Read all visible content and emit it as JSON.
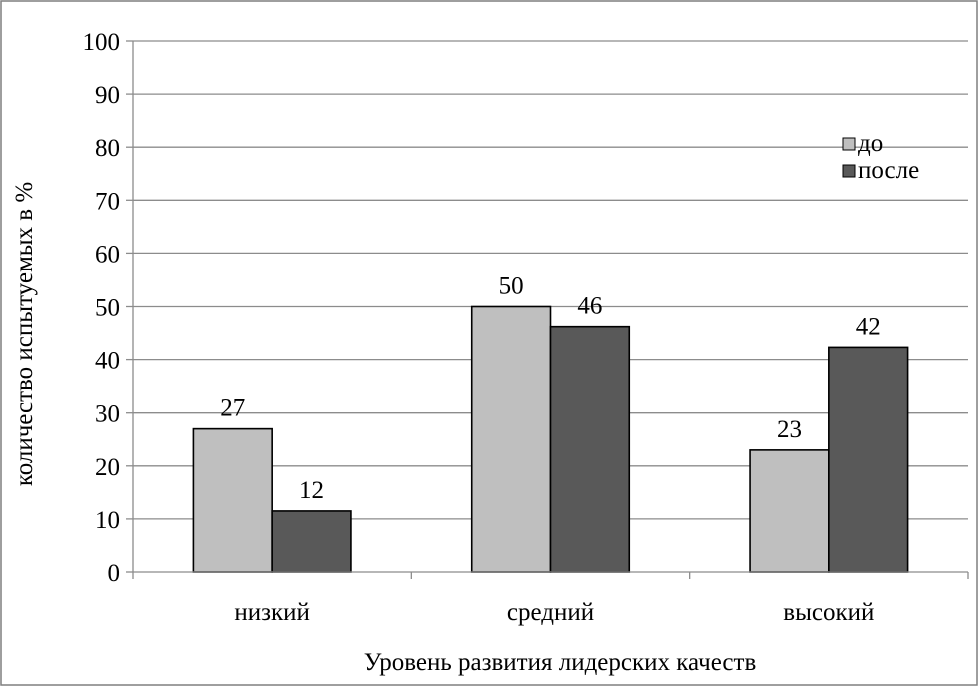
{
  "chart_data": {
    "type": "bar",
    "categories": [
      "низкий",
      "средний",
      "высокий"
    ],
    "series": [
      {
        "name": "до",
        "values": [
          27,
          50,
          23
        ],
        "labels": [
          "27",
          "50",
          "23"
        ],
        "color": "#bfbfbf"
      },
      {
        "name": "после",
        "values": [
          11.5,
          46.2,
          42.3
        ],
        "labels": [
          "12",
          "46",
          "42"
        ],
        "color": "#595959"
      }
    ],
    "xlabel": "Уровень развития лидерских качеств",
    "ylabel": "количество испытуемых в %",
    "ylim": [
      0,
      100
    ],
    "yticks": [
      0,
      10,
      20,
      30,
      40,
      50,
      60,
      70,
      80,
      90,
      100
    ],
    "grid": true,
    "legend_position": "right"
  }
}
